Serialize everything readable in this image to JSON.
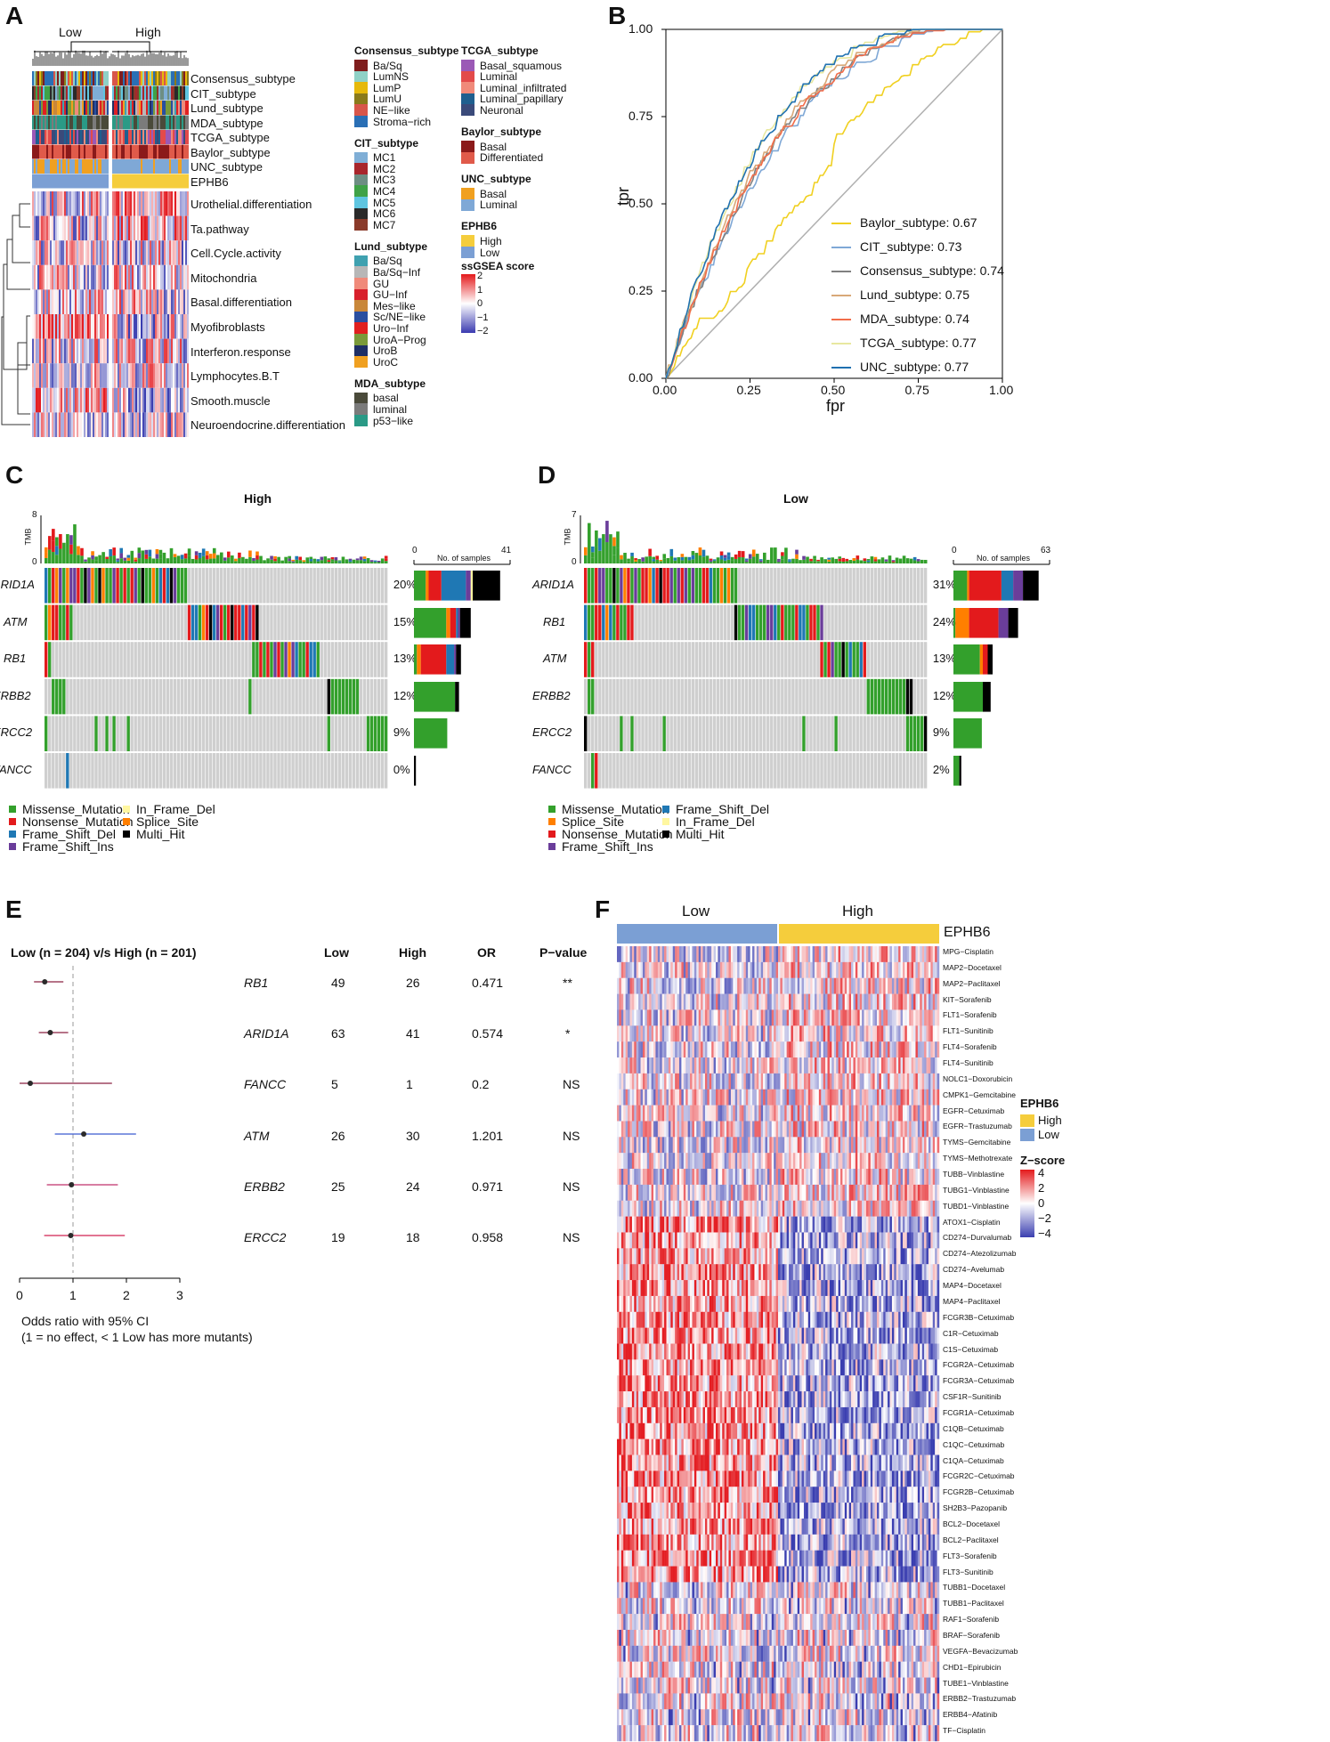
{
  "colors": {
    "low": "#7b9fd4",
    "high": "#f5cd3c",
    "missense": "#33a02c",
    "nonsense": "#e31a1c",
    "frameshift_del": "#1f78b4",
    "frameshift_ins": "#6a3d9a",
    "inframe_del": "#fff7a0",
    "splice": "#ff7f00",
    "multi": "#000000",
    "grey": "#cfcfcf"
  },
  "panels": {
    "a": "A",
    "b": "B",
    "c": "C",
    "d": "D",
    "e": "E",
    "f": "F"
  },
  "panelA": {
    "groups": [
      "Low",
      "High"
    ],
    "annotation_rows": [
      "Consensus_subtype",
      "CIT_subtype",
      "Lund_subtype",
      "MDA_subtype",
      "TCGA_subtype",
      "Baylor_subtype",
      "UNC_subtype",
      "EPHB6"
    ],
    "heatmap_rows": [
      "Urothelial.differentiation",
      "Ta.pathway",
      "Cell.Cycle.activity",
      "Mitochondria",
      "Basal.differentiation",
      "Myofibroblasts",
      "Interferon.response",
      "Lymphocytes.B.T",
      "Smooth.muscle",
      "Neuroendocrine.differentiation"
    ],
    "legends_col1": [
      {
        "title": "Consensus_subtype",
        "items": [
          {
            "label": "Ba/Sq",
            "color": "#7f1d1d"
          },
          {
            "label": "LumNS",
            "color": "#8fd1c6"
          },
          {
            "label": "LumP",
            "color": "#e6b90b"
          },
          {
            "label": "LumU",
            "color": "#8a7a1b"
          },
          {
            "label": "NE−like",
            "color": "#d8564a"
          },
          {
            "label": "Stroma−rich",
            "color": "#2a6fb5"
          }
        ]
      },
      {
        "title": "CIT_subtype",
        "items": [
          {
            "label": "MC1",
            "color": "#7faed6"
          },
          {
            "label": "MC2",
            "color": "#a8262c"
          },
          {
            "label": "MC3",
            "color": "#6d8e83"
          },
          {
            "label": "MC4",
            "color": "#3fa247"
          },
          {
            "label": "MC5",
            "color": "#5fc5e0"
          },
          {
            "label": "MC6",
            "color": "#2a2a2a"
          },
          {
            "label": "MC7",
            "color": "#8a3a2a"
          }
        ]
      },
      {
        "title": "Lund_subtype",
        "items": [
          {
            "label": "Ba/Sq",
            "color": "#3fa1b0"
          },
          {
            "label": "Ba/Sq−Inf",
            "color": "#b7b7b7"
          },
          {
            "label": "GU",
            "color": "#f08a7a"
          },
          {
            "label": "GU−Inf",
            "color": "#d8202c"
          },
          {
            "label": "Mes−like",
            "color": "#c9873a"
          },
          {
            "label": "Sc/NE−like",
            "color": "#2a4fa0"
          },
          {
            "label": "Uro−Inf",
            "color": "#e02020"
          },
          {
            "label": "UroA−Prog",
            "color": "#7a9a3a"
          },
          {
            "label": "UroB",
            "color": "#1e2f66"
          },
          {
            "label": "UroC",
            "color": "#f0a020"
          }
        ]
      },
      {
        "title": "MDA_subtype",
        "items": [
          {
            "label": "basal",
            "color": "#4a4a3a"
          },
          {
            "label": "luminal",
            "color": "#7b7b7b"
          },
          {
            "label": "p53−like",
            "color": "#2a9a86"
          }
        ]
      }
    ],
    "legends_col2": [
      {
        "title": "TCGA_subtype",
        "items": [
          {
            "label": "Basal_squamous",
            "color": "#9b59b6"
          },
          {
            "label": "Luminal",
            "color": "#e34a4a"
          },
          {
            "label": "Luminal_infiltrated",
            "color": "#f08a7a"
          },
          {
            "label": "Luminal_papillary",
            "color": "#1f5f8f"
          },
          {
            "label": "Neuronal",
            "color": "#3a4a7a"
          }
        ]
      },
      {
        "title": "Baylor_subtype",
        "items": [
          {
            "label": "Basal",
            "color": "#8b1a1a"
          },
          {
            "label": "Differentiated",
            "color": "#e05a4a"
          }
        ]
      },
      {
        "title": "UNC_subtype",
        "items": [
          {
            "label": "Basal",
            "color": "#f0a020"
          },
          {
            "label": "Luminal",
            "color": "#7fa8d6"
          }
        ]
      },
      {
        "title": "EPHB6",
        "items": [
          {
            "label": "High",
            "color": "#f5cd3c"
          },
          {
            "label": "Low",
            "color": "#7b9fd4"
          }
        ]
      }
    ],
    "score_title": "ssGSEA score",
    "score_ticks": [
      "2",
      "1",
      "0",
      "−1",
      "−2"
    ]
  },
  "panelB": {
    "xlabel": "fpr",
    "ylabel": "tpr",
    "ticks_x": [
      "0.00",
      "0.25",
      "0.50",
      "0.75",
      "1.00"
    ],
    "ticks_y": [
      "0.00",
      "0.25",
      "0.50",
      "0.75",
      "1.00"
    ],
    "chart_data": {
      "type": "line",
      "title": "",
      "xlabel": "fpr",
      "ylabel": "tpr",
      "xlim": [
        0,
        1
      ],
      "ylim": [
        0,
        1
      ],
      "series": [
        {
          "name": "Baylor_subtype: 0.67",
          "auc": 0.67,
          "color": "#f0d020"
        },
        {
          "name": "CIT_subtype: 0.73",
          "auc": 0.73,
          "color": "#7fa8d6"
        },
        {
          "name": "Consensus_subtype: 0.74",
          "auc": 0.74,
          "color": "#808080"
        },
        {
          "name": "Lund_subtype: 0.75",
          "auc": 0.75,
          "color": "#d8a878"
        },
        {
          "name": "MDA_subtype: 0.74",
          "auc": 0.74,
          "color": "#f26d4a"
        },
        {
          "name": "TCGA_subtype: 0.77",
          "auc": 0.77,
          "color": "#e8e8a0"
        },
        {
          "name": "UNC_subtype: 0.77",
          "auc": 0.77,
          "color": "#1f70b0"
        }
      ]
    }
  },
  "panelC": {
    "title": "High",
    "tmb_label": "TMB",
    "tmb_max": "8",
    "tmb_min": "0",
    "count_min": "0",
    "count_max": "41",
    "count_label": "No. of samples",
    "genes": [
      {
        "name": "ARID1A",
        "pct": "20%",
        "bar": {
          "missense": 0.12,
          "nonsense": 0.13,
          "frameshift_del": 0.25,
          "frameshift_ins": 0.05,
          "splice": 0.03,
          "inframe_del": 0.02,
          "multi": 0.28
        }
      },
      {
        "name": "ATM",
        "pct": "15%",
        "bar": {
          "missense": 0.33,
          "nonsense": 0.06,
          "frameshift_del": 0.02,
          "frameshift_ins": 0.02,
          "splice": 0.04,
          "inframe_del": 0,
          "multi": 0.11
        }
      },
      {
        "name": "RB1",
        "pct": "13%",
        "bar": {
          "missense": 0.03,
          "nonsense": 0.26,
          "frameshift_del": 0.08,
          "frameshift_ins": 0.02,
          "splice": 0.04,
          "inframe_del": 0,
          "multi": 0.05
        }
      },
      {
        "name": "ERBB2",
        "pct": "12%",
        "bar": {
          "missense": 0.42,
          "nonsense": 0,
          "frameshift_del": 0,
          "frameshift_ins": 0,
          "splice": 0,
          "inframe_del": 0,
          "multi": 0.04
        }
      },
      {
        "name": "ERCC2",
        "pct": "9%",
        "bar": {
          "missense": 0.34,
          "nonsense": 0,
          "frameshift_del": 0,
          "frameshift_ins": 0,
          "splice": 0,
          "inframe_del": 0,
          "multi": 0
        }
      },
      {
        "name": "FANCC",
        "pct": "0%",
        "bar": {
          "missense": 0,
          "nonsense": 0,
          "frameshift_del": 0,
          "frameshift_ins": 0,
          "splice": 0,
          "inframe_del": 0,
          "multi": 0.02
        }
      }
    ],
    "legend": [
      {
        "label": "Missense_Mutation",
        "key": "missense"
      },
      {
        "label": "In_Frame_Del",
        "key": "inframe_del"
      },
      {
        "label": "Nonsense_Mutation",
        "key": "nonsense"
      },
      {
        "label": "Splice_Site",
        "key": "splice"
      },
      {
        "label": "Frame_Shift_Del",
        "key": "frameshift_del"
      },
      {
        "label": "Multi_Hit",
        "key": "multi"
      },
      {
        "label": "Frame_Shift_Ins",
        "key": "frameshift_ins"
      }
    ]
  },
  "panelD": {
    "title": "Low",
    "tmb_label": "TMB",
    "tmb_max": "7",
    "tmb_min": "0",
    "count_min": "0",
    "count_max": "63",
    "count_label": "No. of samples",
    "genes": [
      {
        "name": "ARID1A",
        "pct": "31%",
        "bar": {
          "missense": 0.14,
          "nonsense": 0.33,
          "frameshift_del": 0.12,
          "frameshift_ins": 0.1,
          "splice": 0.02,
          "inframe_del": 0,
          "multi": 0.16
        }
      },
      {
        "name": "RB1",
        "pct": "24%",
        "bar": {
          "missense": 0.02,
          "nonsense": 0.3,
          "frameshift_del": 0,
          "frameshift_ins": 0.1,
          "splice": 0.14,
          "inframe_del": 0,
          "multi": 0.1
        }
      },
      {
        "name": "ATM",
        "pct": "13%",
        "bar": {
          "missense": 0.27,
          "nonsense": 0.05,
          "frameshift_del": 0,
          "frameshift_ins": 0,
          "splice": 0.03,
          "inframe_del": 0,
          "multi": 0.05
        }
      },
      {
        "name": "ERBB2",
        "pct": "12%",
        "bar": {
          "missense": 0.3,
          "nonsense": 0,
          "frameshift_del": 0,
          "frameshift_ins": 0,
          "splice": 0,
          "inframe_del": 0,
          "multi": 0.08
        }
      },
      {
        "name": "ERCC2",
        "pct": "9%",
        "bar": {
          "missense": 0.29,
          "nonsense": 0,
          "frameshift_del": 0,
          "frameshift_ins": 0,
          "splice": 0,
          "inframe_del": 0,
          "multi": 0
        }
      },
      {
        "name": "FANCC",
        "pct": "2%",
        "bar": {
          "missense": 0.06,
          "nonsense": 0,
          "frameshift_del": 0,
          "frameshift_ins": 0,
          "splice": 0,
          "inframe_del": 0,
          "multi": 0.02
        }
      }
    ],
    "legend": [
      {
        "label": "Missense_Mutation",
        "key": "missense"
      },
      {
        "label": "Frame_Shift_Del",
        "key": "frameshift_del"
      },
      {
        "label": "Splice_Site",
        "key": "splice"
      },
      {
        "label": "In_Frame_Del",
        "key": "inframe_del"
      },
      {
        "label": "Nonsense_Mutation",
        "key": "nonsense"
      },
      {
        "label": "Multi_Hit",
        "key": "multi"
      },
      {
        "label": "Frame_Shift_Ins",
        "key": "frameshift_ins"
      }
    ]
  },
  "panelE": {
    "title": "Low (n = 204) v/s High (n = 201)",
    "headers": {
      "low": "Low",
      "high": "High",
      "or": "OR",
      "p": "P−value"
    },
    "rows": [
      {
        "gene": "RB1",
        "low": "49",
        "high": "26",
        "or": "0.471",
        "p": "**",
        "or_value": 0.471,
        "ci": [
          0.27,
          0.82
        ],
        "color": "#8b2040"
      },
      {
        "gene": "ARID1A",
        "low": "63",
        "high": "41",
        "or": "0.574",
        "p": "*",
        "or_value": 0.574,
        "ci": [
          0.36,
          0.91
        ],
        "color": "#8b2040"
      },
      {
        "gene": "FANCC",
        "low": "5",
        "high": "1",
        "or": "0.2",
        "p": "NS",
        "or_value": 0.2,
        "ci": [
          0.0,
          1.73
        ],
        "color": "#8b2040"
      },
      {
        "gene": "ATM",
        "low": "26",
        "high": "30",
        "or": "1.201",
        "p": "NS",
        "or_value": 1.201,
        "ci": [
          0.66,
          2.18
        ],
        "color": "#3a5ad0"
      },
      {
        "gene": "ERBB2",
        "low": "25",
        "high": "24",
        "or": "0.971",
        "p": "NS",
        "or_value": 0.971,
        "ci": [
          0.51,
          1.84
        ],
        "color": "#c0306a"
      },
      {
        "gene": "ERCC2",
        "low": "19",
        "high": "18",
        "or": "0.958",
        "p": "NS",
        "or_value": 0.958,
        "ci": [
          0.46,
          1.97
        ],
        "color": "#d02050"
      }
    ],
    "axis_ticks": [
      "0",
      "1",
      "2",
      "3"
    ],
    "xlim": [
      0,
      3
    ],
    "footnote1": "Odds ratio with 95% CI",
    "footnote2": "(1 = no effect, < 1 Low has more mutants)"
  },
  "panelF": {
    "groups": [
      "Low",
      "High"
    ],
    "bar_label": "EPHB6",
    "drugs": [
      "MPG−Cisplatin",
      "MAP2−Docetaxel",
      "MAP2−Paclitaxel",
      "KIT−Sorafenib",
      "FLT1−Sorafenib",
      "FLT1−Sunitinib",
      "FLT4−Sorafenib",
      "FLT4−Sunitinib",
      "NOLC1−Doxorubicin",
      "CMPK1−Gemcitabine",
      "EGFR−Cetuximab",
      "EGFR−Trastuzumab",
      "TYMS−Gemcitabine",
      "TYMS−Methotrexate",
      "TUBB−Vinblastine",
      "TUBG1−Vinblastine",
      "TUBD1−Vinblastine",
      "ATOX1−Cisplatin",
      "CD274−Durvalumab",
      "CD274−Atezolizumab",
      "CD274−Avelumab",
      "MAP4−Docetaxel",
      "MAP4−Paclitaxel",
      "FCGR3B−Cetuximab",
      "C1R−Cetuximab",
      "C1S−Cetuximab",
      "FCGR2A−Cetuximab",
      "FCGR3A−Cetuximab",
      "CSF1R−Sunitinib",
      "FCGR1A−Cetuximab",
      "C1QB−Cetuximab",
      "C1QC−Cetuximab",
      "C1QA−Cetuximab",
      "FCGR2C−Cetuximab",
      "FCGR2B−Cetuximab",
      "SH2B3−Pazopanib",
      "BCL2−Docetaxel",
      "BCL2−Paclitaxel",
      "FLT3−Sorafenib",
      "FLT3−Sunitinib",
      "TUBB1−Docetaxel",
      "TUBB1−Paclitaxel",
      "RAF1−Sorafenib",
      "BRAF−Sorafenib",
      "VEGFA−Bevacizumab",
      "CHD1−Epirubicin",
      "TUBE1−Vinblastine",
      "ERBB2−Trastuzumab",
      "ERBB4−Afatinib",
      "TF−Cisplatin"
    ],
    "legend_title": "EPHB6",
    "legend_items": [
      {
        "label": "High",
        "color": "#f5cd3c"
      },
      {
        "label": "Low",
        "color": "#7b9fd4"
      }
    ],
    "z_title": "Z−score",
    "z_ticks": [
      "4",
      "2",
      "0",
      "−2",
      "−4"
    ]
  }
}
